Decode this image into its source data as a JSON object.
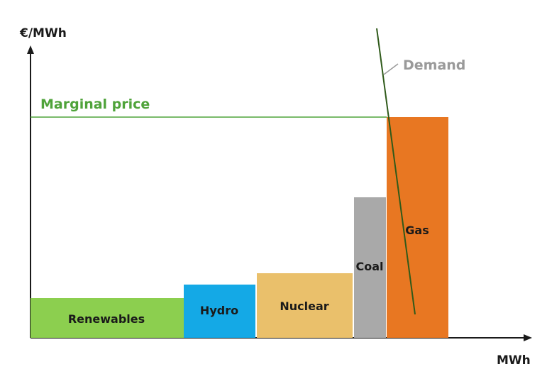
{
  "axes": {
    "y_label": "€/MWh",
    "x_label": "MWh"
  },
  "marginal_price": {
    "label": "Marginal price",
    "color": "#4fa33a"
  },
  "demand": {
    "label": "Demand",
    "line_color": "#2f5a1a",
    "label_color": "#9a9a9a"
  },
  "blocks": [
    {
      "label": "Renewables",
      "color": "#8ccf4f"
    },
    {
      "label": "Hydro",
      "color": "#14a9e6"
    },
    {
      "label": "Nuclear",
      "color": "#eac06b"
    },
    {
      "label": "Coal",
      "color": "#a9a9a9"
    },
    {
      "label": "Gas",
      "color": "#e87722"
    }
  ]
}
